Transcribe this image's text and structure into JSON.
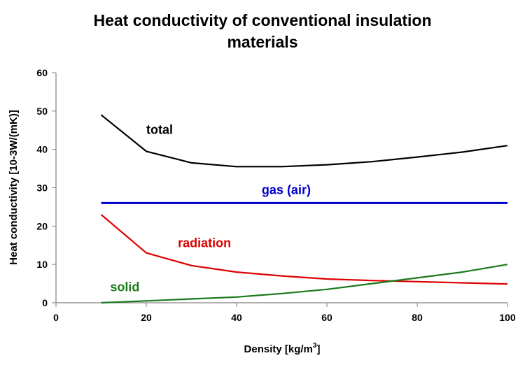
{
  "chart_data": {
    "type": "line",
    "title_line1": "Heat conductivity of conventional insulation",
    "title_line2": "materials",
    "xlabel": "Density [kg/m",
    "xlabel_sup": "3",
    "xlabel_end": "]",
    "ylabel": "Heat conductivity [10-3W/(mK)]",
    "xlim": [
      0,
      100
    ],
    "ylim": [
      0,
      60
    ],
    "xticks": [
      0,
      20,
      40,
      60,
      80,
      100
    ],
    "yticks": [
      0,
      10,
      20,
      30,
      40,
      50,
      60
    ],
    "grid": false,
    "series": [
      {
        "name": "total",
        "color": "#000000",
        "x": [
          10,
          20,
          30,
          40,
          50,
          60,
          70,
          80,
          90,
          100
        ],
        "y": [
          49,
          39.5,
          36.5,
          35.5,
          35.5,
          36,
          36.8,
          38,
          39.3,
          41
        ]
      },
      {
        "name": "gas (air)",
        "color": "#0000cc",
        "x": [
          10,
          20,
          30,
          40,
          50,
          60,
          70,
          80,
          90,
          100
        ],
        "y": [
          26,
          26,
          26,
          26,
          26,
          26,
          26,
          26,
          26,
          26
        ]
      },
      {
        "name": "radiation",
        "color": "#dd0000",
        "x": [
          10,
          20,
          30,
          40,
          50,
          60,
          70,
          80,
          90,
          100
        ],
        "y": [
          23,
          13,
          9.7,
          8,
          7,
          6.2,
          5.8,
          5.5,
          5.2,
          4.9
        ]
      },
      {
        "name": "solid",
        "color": "#1a7a1a",
        "x": [
          10,
          20,
          30,
          40,
          50,
          60,
          70,
          80,
          90,
          100
        ],
        "y": [
          0,
          0.5,
          1,
          1.5,
          2.4,
          3.5,
          5,
          6.5,
          8,
          10
        ]
      }
    ],
    "annotations": [
      {
        "series": "total",
        "text": "total",
        "x": 20,
        "y": 44
      },
      {
        "series": "gas (air)",
        "text": "gas (air)",
        "x": 51,
        "y": 28.4
      },
      {
        "series": "radiation",
        "text": "radiation",
        "x": 27,
        "y": 14.5
      },
      {
        "series": "solid",
        "text": "solid",
        "x": 12,
        "y": 3
      }
    ]
  }
}
